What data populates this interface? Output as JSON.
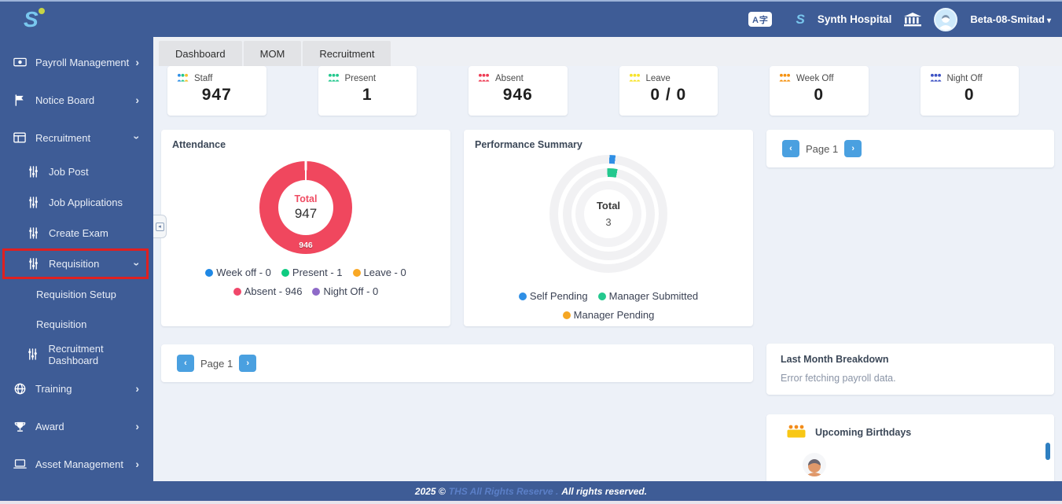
{
  "colors": {
    "sidebar_bg": "#3e5c96",
    "content_bg": "#edf1f8",
    "accent_blue": "#4aa0e0",
    "donut_red": "#f0475e",
    "annotation_red": "#e02020"
  },
  "header": {
    "logo_letter": "S",
    "hospital_name": "Synth Hospital",
    "user_name": "Beta-08-Smitad",
    "translate_label": "A字"
  },
  "sidebar": {
    "items": [
      {
        "label": "Payroll Management",
        "icon": "money",
        "level": 0,
        "chevron": "right"
      },
      {
        "label": "Notice Board",
        "icon": "flag",
        "level": 0,
        "chevron": "right"
      },
      {
        "label": "Recruitment",
        "icon": "window",
        "level": 0,
        "chevron": "down"
      },
      {
        "label": "Job Post",
        "icon": "sliders",
        "level": 1,
        "chevron": null
      },
      {
        "label": "Job Applications",
        "icon": "sliders",
        "level": 1,
        "chevron": null
      },
      {
        "label": "Create Exam",
        "icon": "sliders",
        "level": 1,
        "chevron": null
      },
      {
        "label": "Requisition",
        "icon": "sliders",
        "level": 1,
        "chevron": "down",
        "annotated": true
      },
      {
        "label": "Requisition Setup",
        "icon": null,
        "level": 2,
        "chevron": null
      },
      {
        "label": "Requisition",
        "icon": null,
        "level": 2,
        "chevron": null
      },
      {
        "label": "Recruitment Dashboard",
        "icon": "sliders",
        "level": 1,
        "chevron": null
      },
      {
        "label": "Training",
        "icon": "globe",
        "level": 0,
        "chevron": "right"
      },
      {
        "label": "Award",
        "icon": "trophy",
        "level": 0,
        "chevron": "right"
      },
      {
        "label": "Asset Management",
        "icon": "laptop",
        "level": 0,
        "chevron": "right"
      }
    ]
  },
  "tabs": [
    "Dashboard",
    "MOM",
    "Recruitment"
  ],
  "stats": [
    {
      "label": "Staff",
      "value": "947",
      "icon_colors": [
        "#2f8fe5",
        "#23c88e",
        "#f2c230"
      ]
    },
    {
      "label": "Present",
      "value": "1",
      "icon_colors": [
        "#23c88e"
      ]
    },
    {
      "label": "Absent",
      "value": "946",
      "icon_colors": [
        "#ee3d55"
      ]
    },
    {
      "label": "Leave",
      "value": "0 / 0",
      "icon_colors": [
        "#f7e32a"
      ]
    },
    {
      "label": "Week Off",
      "value": "0",
      "icon_colors": [
        "#f59211"
      ]
    },
    {
      "label": "Night Off",
      "value": "0",
      "icon_colors": [
        "#3d52c4"
      ]
    }
  ],
  "attendance": {
    "title": "Attendance",
    "center_label": "Total",
    "center_value": "947",
    "slice_label": "946",
    "legend": [
      {
        "label": "Week off - 0",
        "color": "#1e88e5"
      },
      {
        "label": "Present - 1",
        "color": "#0ecb81"
      },
      {
        "label": "Leave - 0",
        "color": "#f9a825"
      },
      {
        "label": "Absent - 946",
        "color": "#f0476a"
      },
      {
        "label": "Night Off - 0",
        "color": "#8e6ac8"
      }
    ]
  },
  "performance": {
    "title": "Performance Summary",
    "center_label": "Total",
    "center_value": "3",
    "legend": [
      {
        "label": "Self Pending",
        "color": "#2f8fe5"
      },
      {
        "label": "Manager Submitted",
        "color": "#23c88e"
      },
      {
        "label": "Manager Pending",
        "color": "#f5a623"
      }
    ]
  },
  "pagination": {
    "label": "Page 1",
    "prev": "‹",
    "next": "›"
  },
  "last_month": {
    "title": "Last Month Breakdown",
    "message": "Error fetching payroll data."
  },
  "birthdays": {
    "title": "Upcoming Birthdays"
  },
  "footer": {
    "prefix": "2025 ©",
    "link": "THS All Rights Reserve .",
    "suffix": "All rights reserved."
  },
  "chart_data": [
    {
      "type": "pie",
      "title": "Attendance",
      "categories": [
        "Week off",
        "Present",
        "Leave",
        "Absent",
        "Night Off"
      ],
      "values": [
        0,
        1,
        0,
        946,
        0
      ],
      "total": 947,
      "colors": [
        "#1e88e5",
        "#0ecb81",
        "#f9a825",
        "#f0476a",
        "#8e6ac8"
      ],
      "legend_position": "bottom"
    },
    {
      "type": "pie",
      "title": "Performance Summary",
      "categories": [
        "Self Pending",
        "Manager Submitted",
        "Manager Pending"
      ],
      "values": [
        1,
        2,
        0
      ],
      "total": 3,
      "colors": [
        "#2f8fe5",
        "#23c88e",
        "#f5a623"
      ],
      "legend_position": "bottom",
      "note": "radial rings; segment sizes estimated from pixels"
    }
  ]
}
